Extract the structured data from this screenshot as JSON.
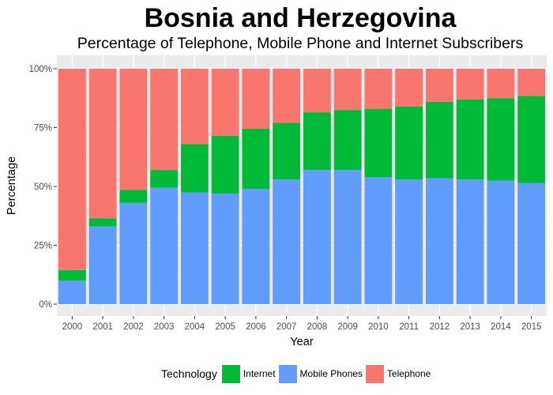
{
  "title": "Bosnia and Herzegovina",
  "subtitle": "Percentage of Telephone, Mobile Phone and Internet Subscribers",
  "legend": {
    "title": "Technology",
    "items": [
      {
        "label": "Internet",
        "color": "#00BA38"
      },
      {
        "label": "Mobile Phones",
        "color": "#619CFF"
      },
      {
        "label": "Telephone",
        "color": "#F8766D"
      }
    ]
  },
  "chart_data": {
    "type": "bar",
    "stacked": true,
    "title": "Bosnia and Herzegovina",
    "subtitle": "Percentage of Telephone, Mobile Phone and Internet Subscribers",
    "xlabel": "Year",
    "ylabel": "Percentage",
    "ylim": [
      0,
      1
    ],
    "yticks": [
      "0%",
      "25%",
      "50%",
      "75%",
      "100%"
    ],
    "grid": true,
    "legend_position": "bottom",
    "categories": [
      "2000",
      "2001",
      "2002",
      "2003",
      "2004",
      "2005",
      "2006",
      "2007",
      "2008",
      "2009",
      "2010",
      "2011",
      "2012",
      "2013",
      "2014",
      "2015"
    ],
    "series": [
      {
        "name": "Mobile Phones",
        "color": "#619CFF",
        "values": [
          0.1,
          0.33,
          0.43,
          0.495,
          0.475,
          0.47,
          0.49,
          0.53,
          0.57,
          0.57,
          0.54,
          0.53,
          0.535,
          0.53,
          0.525,
          0.515
        ]
      },
      {
        "name": "Internet",
        "color": "#00BA38",
        "values": [
          0.045,
          0.035,
          0.055,
          0.075,
          0.205,
          0.245,
          0.255,
          0.24,
          0.245,
          0.255,
          0.29,
          0.31,
          0.325,
          0.34,
          0.35,
          0.37
        ]
      },
      {
        "name": "Telephone",
        "color": "#F8766D",
        "values": [
          0.855,
          0.635,
          0.515,
          0.43,
          0.32,
          0.285,
          0.255,
          0.23,
          0.185,
          0.175,
          0.17,
          0.16,
          0.14,
          0.13,
          0.125,
          0.115
        ]
      }
    ]
  }
}
